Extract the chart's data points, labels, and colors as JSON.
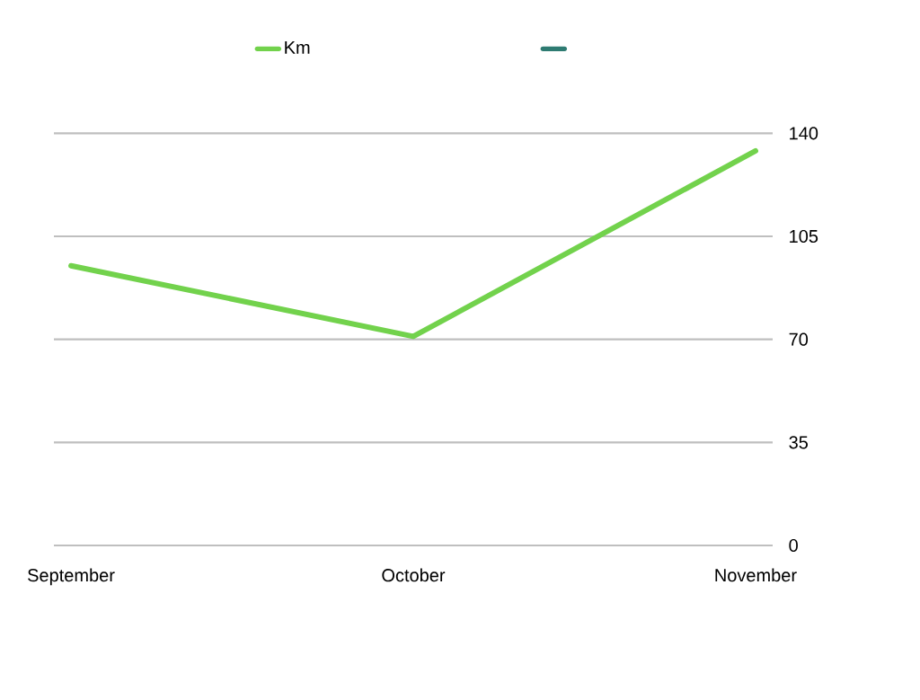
{
  "chart_data": {
    "type": "line",
    "categories": [
      "September",
      "October",
      "November"
    ],
    "series": [
      {
        "name": "Km",
        "color": "#72d24c",
        "values": [
          95,
          71,
          134
        ]
      },
      {
        "color": "#2e7b72",
        "values": [
          null,
          null,
          null
        ]
      }
    ],
    "ylim": [
      0,
      140
    ],
    "yticks": [
      0,
      35,
      70,
      105,
      140
    ],
    "grid": "y",
    "legend": "top",
    "line_style": "solid"
  }
}
